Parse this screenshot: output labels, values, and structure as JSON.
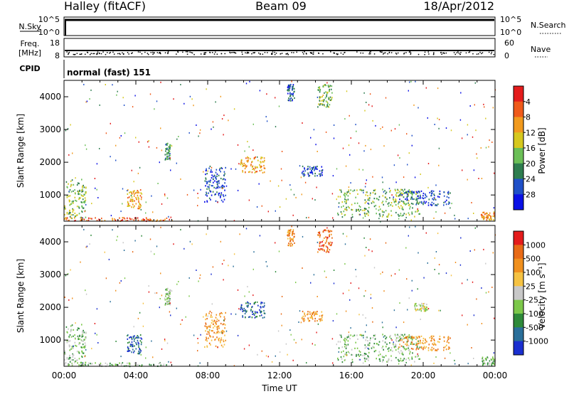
{
  "header": {
    "station": "Halley (fitACF)",
    "beam": "Beam 09",
    "date": "18/Apr/2012"
  },
  "top_panels": {
    "nsky_label": "N.Sky",
    "nsky_ticks": [
      "10^5",
      "10^0"
    ],
    "nsearch_label": "N.Search",
    "nsearch_ticks": [
      "10^5",
      "10^0"
    ],
    "freq_label": "Freq.",
    "freq_unit": "[MHz]",
    "freq_ticks": [
      "18",
      "8"
    ],
    "nave_label": "Nave",
    "nave_ticks": [
      "60",
      "0"
    ],
    "cpid_label": "CPID",
    "cpid_value": "normal (fast) 151"
  },
  "chart_data": [
    {
      "type": "heatmap",
      "name": "power",
      "ylabel": "Slant Range [km]",
      "yticks": [
        "1000",
        "2000",
        "3000",
        "4000"
      ],
      "ylim": [
        200,
        4500
      ],
      "xlim": [
        0,
        24
      ],
      "colorbar_label": "Power [dB]",
      "colorbar_ticks": [
        "4",
        "8",
        "12",
        "16",
        "20",
        "24",
        "28"
      ],
      "colors": [
        "#0a10e6",
        "#1f50c8",
        "#2e7d4f",
        "#6bbf57",
        "#d6c81e",
        "#f19a1e",
        "#ef5a1a",
        "#e41c1c"
      ],
      "features": [
        {
          "t0": 0.0,
          "t1": 1.2,
          "r0": 300,
          "r1": 1500,
          "level": 3
        },
        {
          "t0": 3.5,
          "t1": 4.3,
          "r0": 600,
          "r1": 1200,
          "level": 5
        },
        {
          "t0": 5.6,
          "t1": 5.9,
          "r0": 2100,
          "r1": 2600,
          "level": 2
        },
        {
          "t0": 7.8,
          "t1": 9.0,
          "r0": 800,
          "r1": 1900,
          "level": 1
        },
        {
          "t0": 9.8,
          "t1": 11.2,
          "r0": 1700,
          "r1": 2200,
          "level": 5
        },
        {
          "t0": 12.4,
          "t1": 12.8,
          "r0": 3900,
          "r1": 4400,
          "level": 1
        },
        {
          "t0": 14.1,
          "t1": 14.9,
          "r0": 3700,
          "r1": 4400,
          "level": 3
        },
        {
          "t0": 13.2,
          "t1": 14.4,
          "r0": 1600,
          "r1": 1900,
          "level": 1
        },
        {
          "t0": 15.2,
          "t1": 19.8,
          "r0": 350,
          "r1": 1200,
          "level": 3
        },
        {
          "t0": 18.6,
          "t1": 21.5,
          "r0": 700,
          "r1": 1150,
          "level": 1
        },
        {
          "t0": 0.0,
          "t1": 6.0,
          "r0": 220,
          "r1": 330,
          "level": 6
        },
        {
          "t0": 23.2,
          "t1": 24.0,
          "r0": 250,
          "r1": 500,
          "level": 5
        }
      ]
    },
    {
      "type": "heatmap",
      "name": "velocity",
      "ylabel": "Slant Range [km]",
      "yticks": [
        "1000",
        "2000",
        "3000",
        "4000"
      ],
      "ylim": [
        200,
        4500
      ],
      "xlim": [
        0,
        24
      ],
      "xticks": [
        "00:00",
        "04:00",
        "08:00",
        "12:00",
        "16:00",
        "20:00",
        "00:00"
      ],
      "xlabel": "Time UT",
      "colorbar_label": "Velocity [m s⁻¹]",
      "colorbar_ticks": [
        "1000",
        "500",
        "100",
        "25",
        "-25",
        "-100",
        "-500",
        "-1000"
      ],
      "colors": [
        "#1a2fd0",
        "#2a6f9a",
        "#2e8a3a",
        "#7cc84a",
        "#c8c8c8",
        "#f5c242",
        "#f0901e",
        "#e86a16",
        "#e41c1c"
      ],
      "features": [
        {
          "t0": 0.0,
          "t1": 1.2,
          "r0": 300,
          "r1": 1500,
          "level": 3
        },
        {
          "t0": 3.5,
          "t1": 4.3,
          "r0": 600,
          "r1": 1200,
          "level": 1
        },
        {
          "t0": 5.6,
          "t1": 5.9,
          "r0": 2100,
          "r1": 2600,
          "level": 3
        },
        {
          "t0": 7.8,
          "t1": 9.0,
          "r0": 800,
          "r1": 1900,
          "level": 6
        },
        {
          "t0": 9.8,
          "t1": 11.2,
          "r0": 1700,
          "r1": 2200,
          "level": 1
        },
        {
          "t0": 12.4,
          "t1": 12.8,
          "r0": 3900,
          "r1": 4400,
          "level": 6
        },
        {
          "t0": 14.1,
          "t1": 14.9,
          "r0": 3700,
          "r1": 4400,
          "level": 7
        },
        {
          "t0": 13.2,
          "t1": 14.4,
          "r0": 1600,
          "r1": 1900,
          "level": 6
        },
        {
          "t0": 15.2,
          "t1": 19.8,
          "r0": 350,
          "r1": 1200,
          "level": 3
        },
        {
          "t0": 18.6,
          "t1": 21.5,
          "r0": 700,
          "r1": 1150,
          "level": 6
        },
        {
          "t0": 19.5,
          "t1": 20.2,
          "r0": 1900,
          "r1": 2150,
          "level": 4
        },
        {
          "t0": 0.0,
          "t1": 6.0,
          "r0": 220,
          "r1": 330,
          "level": 3
        },
        {
          "t0": 23.2,
          "t1": 24.0,
          "r0": 250,
          "r1": 500,
          "level": 3
        }
      ]
    }
  ]
}
